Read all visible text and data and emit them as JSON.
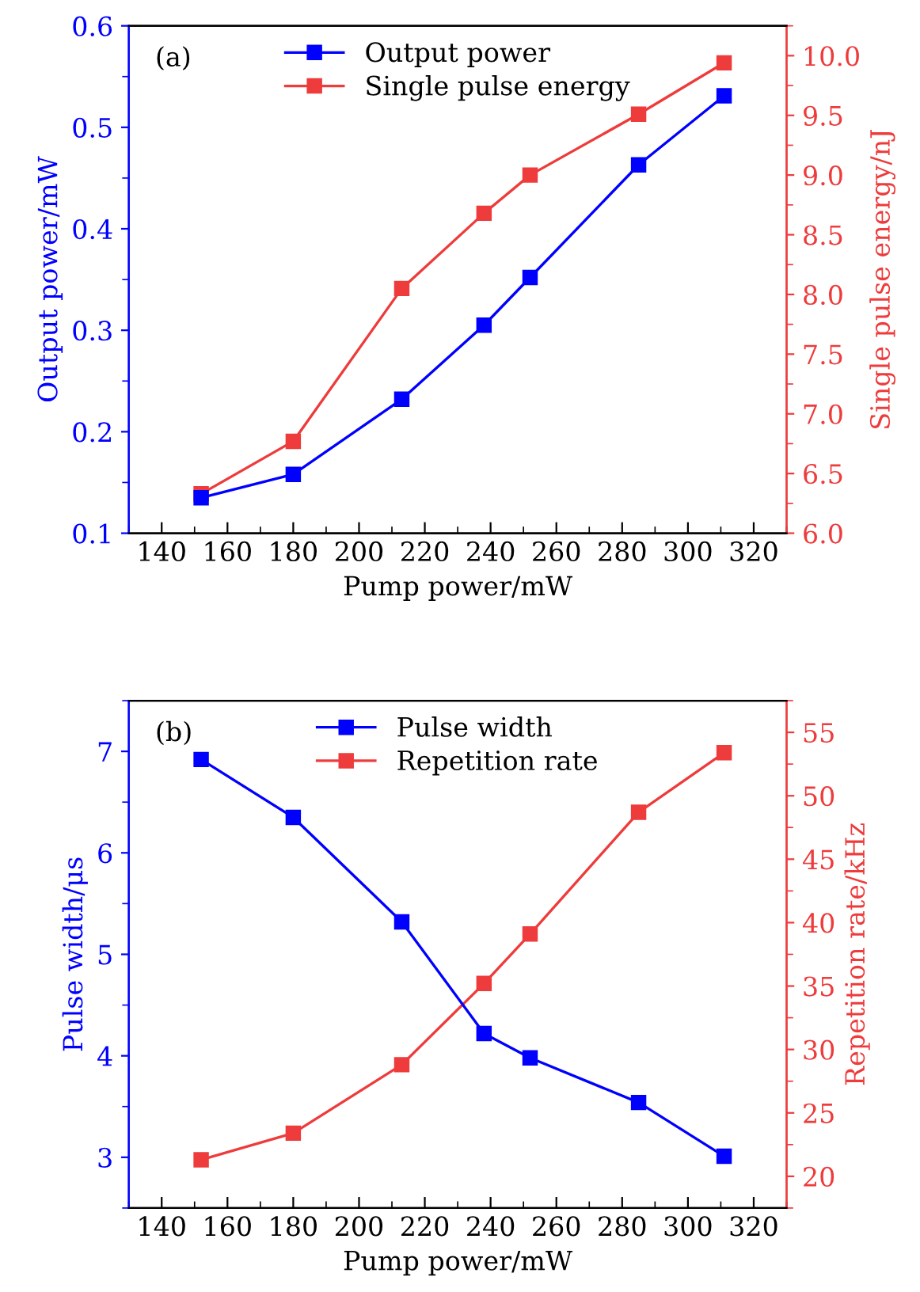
{
  "chart_data": [
    {
      "type": "line",
      "xlabel": "Pump power/mW",
      "ylabel": "Output power/mW",
      "y2label": "Single pulse energy/nJ",
      "annotations": [
        "(a)"
      ],
      "xlim": [
        130,
        330
      ],
      "xticks": [
        140,
        160,
        180,
        200,
        220,
        240,
        260,
        280,
        300,
        320
      ],
      "ylim": [
        0.1,
        0.6
      ],
      "yticks": [
        0.1,
        0.2,
        0.3,
        0.4,
        0.5,
        0.6
      ],
      "y2lim": [
        6.0,
        10.25
      ],
      "y2ticks": [
        {
          "value": 6.0,
          "label": "6.0"
        },
        6.5,
        {
          "value": 7.0,
          "label": "7.0"
        },
        7.5,
        {
          "value": 8.0,
          "label": "8.0"
        },
        8.5,
        {
          "value": 9.0,
          "label": "9.0"
        },
        9.5,
        {
          "value": 10.0,
          "label": "10.0"
        }
      ],
      "x": [
        152,
        180,
        213,
        238,
        252,
        285,
        311
      ],
      "marker": "square",
      "legend": "top",
      "grid": false,
      "series": [
        {
          "name": "Output power",
          "color": "#0000ff",
          "values": [
            0.135,
            0.158,
            0.232,
            0.305,
            0.352,
            0.463,
            0.531
          ]
        },
        {
          "name": "Single pulse energy",
          "color": "#ee3b3b",
          "axis": "y2",
          "values": [
            6.33,
            6.77,
            8.05,
            8.68,
            9.0,
            9.51,
            9.94
          ]
        }
      ]
    },
    {
      "type": "line",
      "xlabel": "Pump power/mW",
      "ylabel": "Pulse width/μs",
      "y2label": "Repetition rate/kHz",
      "annotations": [
        "(b)"
      ],
      "xlim": [
        130,
        330
      ],
      "xticks": [
        140,
        160,
        180,
        200,
        220,
        240,
        260,
        280,
        300,
        320
      ],
      "ylim": [
        2.5,
        7.5
      ],
      "yticks": [
        3,
        4,
        5,
        6,
        7
      ],
      "y2lim": [
        17.5,
        57.5
      ],
      "y2ticks": [
        20,
        25,
        30,
        35,
        40,
        45,
        50,
        55
      ],
      "x": [
        152,
        180,
        213,
        238,
        252,
        285,
        311
      ],
      "marker": "square",
      "legend": "top",
      "grid": false,
      "series": [
        {
          "name": "Pulse width",
          "color": "#0000ff",
          "values": [
            6.92,
            6.35,
            5.32,
            4.22,
            3.98,
            3.54,
            3.01
          ]
        },
        {
          "name": "Repetition rate",
          "color": "#ee3b3b",
          "axis": "y2",
          "values": [
            21.3,
            23.4,
            28.8,
            35.2,
            39.1,
            48.7,
            53.4
          ]
        }
      ]
    }
  ]
}
